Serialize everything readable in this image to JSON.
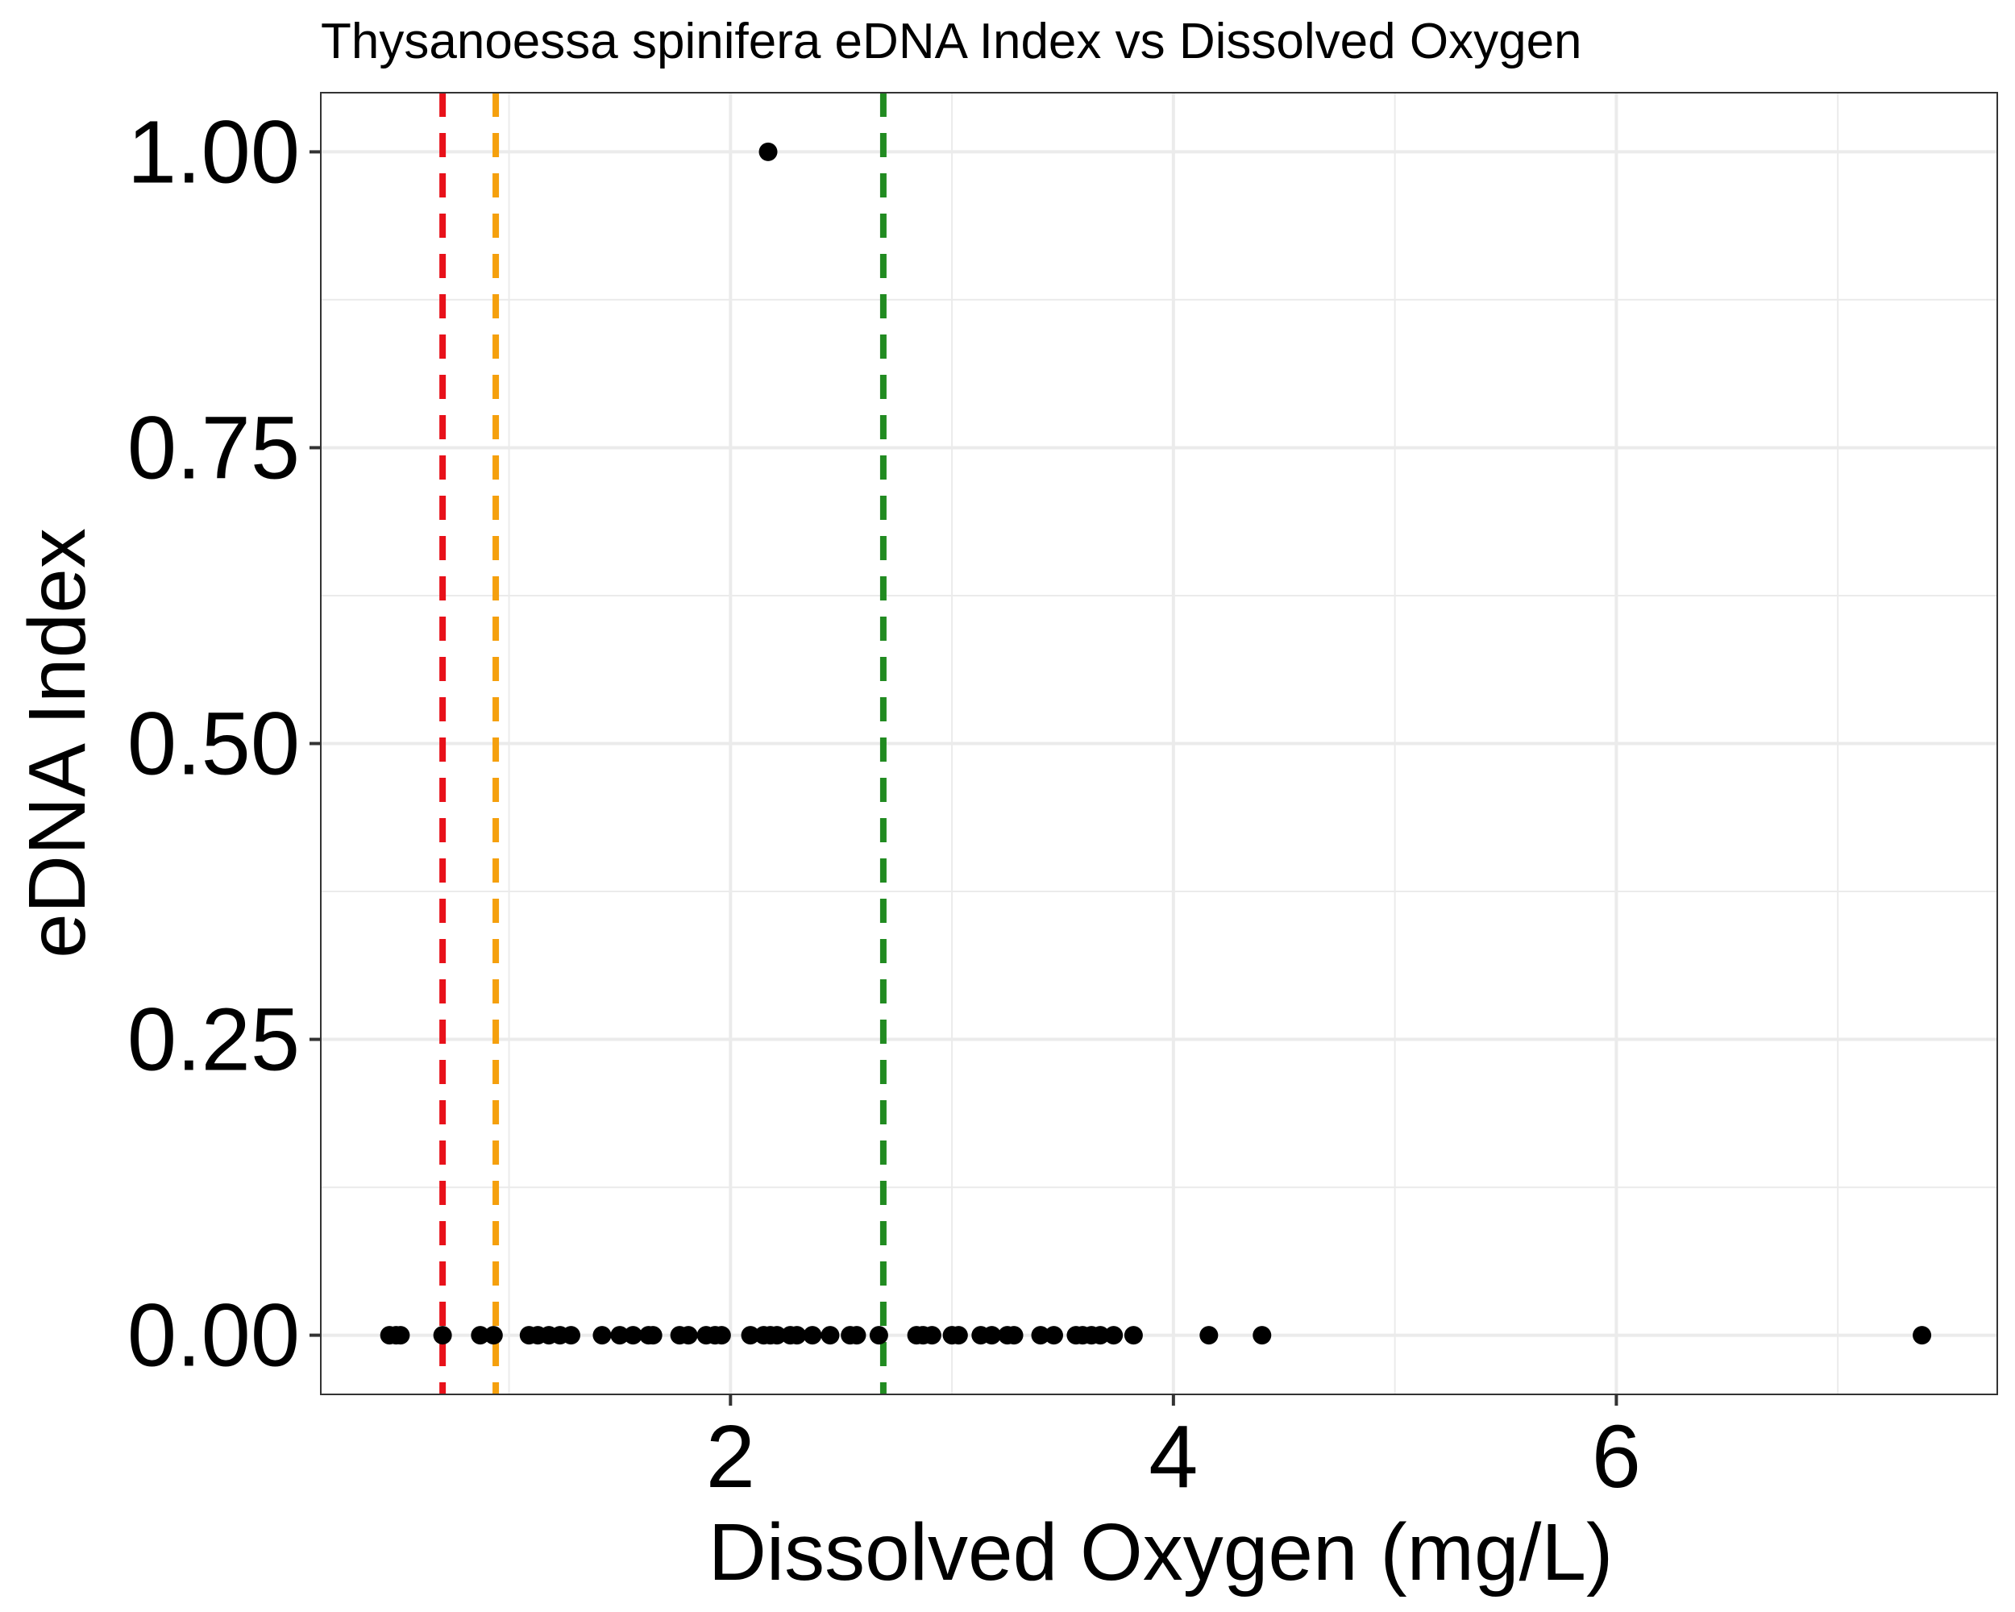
{
  "chart_data": {
    "type": "scatter",
    "title": "Thysanoessa spinifera eDNA Index vs Dissolved Oxygen",
    "xlabel": "Dissolved Oxygen (mg/L)",
    "ylabel": "eDNA Index",
    "xlim": [
      0.15,
      7.72
    ],
    "ylim": [
      -0.05,
      1.05
    ],
    "x_ticks": [
      2,
      4,
      6
    ],
    "x_tick_labels": [
      "2",
      "4",
      "6"
    ],
    "y_ticks": [
      0,
      0.25,
      0.5,
      0.75,
      1.0
    ],
    "y_tick_labels": [
      "0.00",
      "0.25",
      "0.50",
      "0.75",
      "1.00"
    ],
    "grid": true,
    "point_color": "#000000",
    "reference_lines": [
      {
        "x": 0.7,
        "color": "#e8111a",
        "style": "dashed"
      },
      {
        "x": 0.94,
        "color": "#f5a00d",
        "style": "dashed"
      },
      {
        "x": 2.69,
        "color": "#218b21",
        "style": "dashed"
      }
    ],
    "points": [
      {
        "x": 2.17,
        "y": 1.0
      },
      {
        "x": 0.46,
        "y": 0
      },
      {
        "x": 0.49,
        "y": 0
      },
      {
        "x": 0.51,
        "y": 0
      },
      {
        "x": 0.7,
        "y": 0
      },
      {
        "x": 0.87,
        "y": 0
      },
      {
        "x": 0.93,
        "y": 0
      },
      {
        "x": 1.09,
        "y": 0
      },
      {
        "x": 1.13,
        "y": 0
      },
      {
        "x": 1.18,
        "y": 0
      },
      {
        "x": 1.23,
        "y": 0
      },
      {
        "x": 1.28,
        "y": 0
      },
      {
        "x": 1.42,
        "y": 0
      },
      {
        "x": 1.5,
        "y": 0
      },
      {
        "x": 1.56,
        "y": 0
      },
      {
        "x": 1.63,
        "y": 0
      },
      {
        "x": 1.65,
        "y": 0
      },
      {
        "x": 1.77,
        "y": 0
      },
      {
        "x": 1.81,
        "y": 0
      },
      {
        "x": 1.89,
        "y": 0
      },
      {
        "x": 1.93,
        "y": 0
      },
      {
        "x": 1.96,
        "y": 0
      },
      {
        "x": 2.09,
        "y": 0
      },
      {
        "x": 2.15,
        "y": 0
      },
      {
        "x": 2.18,
        "y": 0
      },
      {
        "x": 2.21,
        "y": 0
      },
      {
        "x": 2.27,
        "y": 0
      },
      {
        "x": 2.3,
        "y": 0
      },
      {
        "x": 2.37,
        "y": 0
      },
      {
        "x": 2.45,
        "y": 0
      },
      {
        "x": 2.54,
        "y": 0
      },
      {
        "x": 2.57,
        "y": 0
      },
      {
        "x": 2.67,
        "y": 0
      },
      {
        "x": 2.84,
        "y": 0
      },
      {
        "x": 2.87,
        "y": 0
      },
      {
        "x": 2.91,
        "y": 0
      },
      {
        "x": 3.0,
        "y": 0
      },
      {
        "x": 3.03,
        "y": 0
      },
      {
        "x": 3.13,
        "y": 0
      },
      {
        "x": 3.18,
        "y": 0
      },
      {
        "x": 3.25,
        "y": 0
      },
      {
        "x": 3.28,
        "y": 0
      },
      {
        "x": 3.4,
        "y": 0
      },
      {
        "x": 3.46,
        "y": 0
      },
      {
        "x": 3.56,
        "y": 0
      },
      {
        "x": 3.59,
        "y": 0
      },
      {
        "x": 3.63,
        "y": 0
      },
      {
        "x": 3.67,
        "y": 0
      },
      {
        "x": 3.73,
        "y": 0
      },
      {
        "x": 3.82,
        "y": 0
      },
      {
        "x": 4.16,
        "y": 0
      },
      {
        "x": 4.4,
        "y": 0
      },
      {
        "x": 7.38,
        "y": 0
      }
    ]
  }
}
